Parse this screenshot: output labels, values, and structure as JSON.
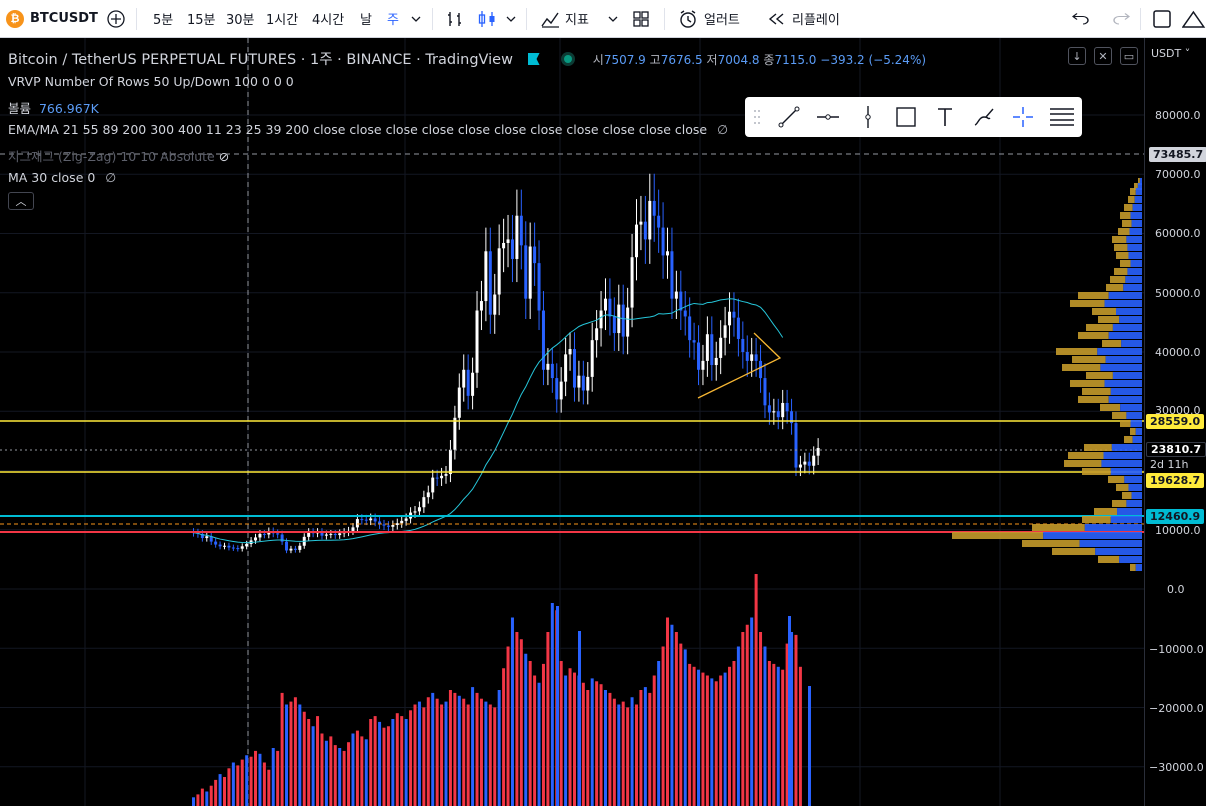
{
  "toolbar": {
    "symbol": "BTCUSDT",
    "intervals": [
      "5분",
      "15분",
      "30분",
      "1시간",
      "4시간",
      "날",
      "주"
    ],
    "active_interval": "주",
    "indicators_label": "지표",
    "alert_label": "얼러트",
    "replay_label": "리플레이"
  },
  "header": {
    "title": "Bitcoin / TetherUS PERPETUAL FUTURES · 1주 · BINANCE · TradingView",
    "open_label": "시",
    "open": "7507.9",
    "high_label": "고",
    "high": "7676.5",
    "low_label": "저",
    "low": "7004.8",
    "close_label": "종",
    "close": "7115.0",
    "change": "−393.2 (−5.24%)"
  },
  "legends": {
    "vrvp": "VRVP Number Of Rows 50 Up/Down 100  0  0  0",
    "volume_label": "볼륨",
    "volume_value": "766.967K",
    "ema": "EMA/MA 21 55 89 200 300 400 11 23 25 39 200 close close close close close close close close close close close",
    "zigzag": "지그재그 (Zig-Zag) 10 10 Absolute",
    "ma": "MA 30 close 0"
  },
  "axis": {
    "currency": "USDT",
    "ticks": [
      "80000.0",
      "70000.0",
      "60000.0",
      "50000.0",
      "40000.0",
      "30000.0",
      "10000.0",
      "0.0",
      "−10000.0",
      "−20000.0",
      "−30000.0"
    ],
    "tag_73485": "73485.7",
    "tag_28559": "28559.0",
    "tag_23810": "23810.7",
    "tag_countdown": "2d 11h",
    "tag_19628": "19628.7",
    "tag_12460": "12460.9"
  },
  "colors": {
    "up": "#ffffff",
    "down": "#2962ff",
    "ma": "#26c6da",
    "yellow": "#ffeb3b",
    "cyan_line": "#00bcd4",
    "red_line": "#f23645",
    "vol_up": "#f23645",
    "vol_down": "#2962ff",
    "vp_up": "#c49a2a",
    "vp_down": "#2962ff"
  }
}
